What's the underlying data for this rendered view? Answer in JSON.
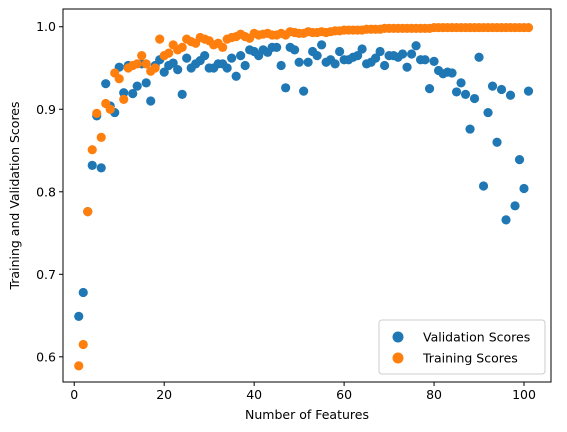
{
  "chart_data": {
    "type": "scatter",
    "xlabel": "Number of Features",
    "ylabel": "Training and Validation Scores",
    "xlim": [
      -2.5,
      106
    ],
    "ylim": [
      0.5695,
      1.0215
    ],
    "xticks": [
      0,
      20,
      40,
      60,
      80,
      100
    ],
    "yticks": [
      0.6,
      0.7,
      0.8,
      0.9,
      1.0
    ],
    "xtick_labels": [
      "0",
      "20",
      "40",
      "60",
      "80",
      "100"
    ],
    "ytick_labels": [
      "0.6",
      "0.7",
      "0.8",
      "0.9",
      "1.0"
    ],
    "grid": false,
    "legend_position": "lower right",
    "series": [
      {
        "name": "Validation Scores",
        "color": "#1f77b4",
        "points": [
          [
            1,
            0.649
          ],
          [
            2,
            0.678
          ],
          [
            3,
            0.776
          ],
          [
            4,
            0.832
          ],
          [
            5,
            0.892
          ],
          [
            6,
            0.829
          ],
          [
            7,
            0.931
          ],
          [
            8,
            0.904
          ],
          [
            9,
            0.896
          ],
          [
            10,
            0.951
          ],
          [
            11,
            0.92
          ],
          [
            12,
            0.953
          ],
          [
            13,
            0.919
          ],
          [
            14,
            0.928
          ],
          [
            15,
            0.955
          ],
          [
            16,
            0.932
          ],
          [
            17,
            0.91
          ],
          [
            18,
            0.953
          ],
          [
            19,
            0.96
          ],
          [
            20,
            0.945
          ],
          [
            21,
            0.953
          ],
          [
            22,
            0.956
          ],
          [
            23,
            0.948
          ],
          [
            24,
            0.918
          ],
          [
            25,
            0.962
          ],
          [
            26,
            0.95
          ],
          [
            27,
            0.955
          ],
          [
            28,
            0.959
          ],
          [
            29,
            0.965
          ],
          [
            30,
            0.95
          ],
          [
            31,
            0.95
          ],
          [
            32,
            0.955
          ],
          [
            33,
            0.955
          ],
          [
            34,
            0.95
          ],
          [
            35,
            0.962
          ],
          [
            36,
            0.94
          ],
          [
            37,
            0.965
          ],
          [
            38,
            0.953
          ],
          [
            39,
            0.972
          ],
          [
            40,
            0.97
          ],
          [
            41,
            0.965
          ],
          [
            42,
            0.972
          ],
          [
            43,
            0.969
          ],
          [
            44,
            0.975
          ],
          [
            45,
            0.975
          ],
          [
            46,
            0.953
          ],
          [
            47,
            0.926
          ],
          [
            48,
            0.975
          ],
          [
            49,
            0.972
          ],
          [
            50,
            0.957
          ],
          [
            51,
            0.922
          ],
          [
            52,
            0.957
          ],
          [
            53,
            0.97
          ],
          [
            54,
            0.965
          ],
          [
            55,
            0.978
          ],
          [
            56,
            0.957
          ],
          [
            57,
            0.96
          ],
          [
            58,
            0.955
          ],
          [
            59,
            0.97
          ],
          [
            60,
            0.96
          ],
          [
            61,
            0.96
          ],
          [
            62,
            0.963
          ],
          [
            63,
            0.965
          ],
          [
            64,
            0.973
          ],
          [
            65,
            0.955
          ],
          [
            66,
            0.957
          ],
          [
            67,
            0.962
          ],
          [
            68,
            0.97
          ],
          [
            69,
            0.953
          ],
          [
            70,
            0.965
          ],
          [
            71,
            0.965
          ],
          [
            72,
            0.963
          ],
          [
            73,
            0.967
          ],
          [
            74,
            0.951
          ],
          [
            75,
            0.967
          ],
          [
            76,
            0.977
          ],
          [
            77,
            0.96
          ],
          [
            78,
            0.96
          ],
          [
            79,
            0.925
          ],
          [
            80,
            0.958
          ],
          [
            81,
            0.947
          ],
          [
            82,
            0.943
          ],
          [
            83,
            0.945
          ],
          [
            84,
            0.944
          ],
          [
            85,
            0.921
          ],
          [
            86,
            0.932
          ],
          [
            87,
            0.918
          ],
          [
            88,
            0.876
          ],
          [
            89,
            0.913
          ],
          [
            90,
            0.963
          ],
          [
            91,
            0.807
          ],
          [
            92,
            0.896
          ],
          [
            93,
            0.928
          ],
          [
            94,
            0.86
          ],
          [
            95,
            0.924
          ],
          [
            96,
            0.766
          ],
          [
            97,
            0.917
          ],
          [
            98,
            0.783
          ],
          [
            99,
            0.839
          ],
          [
            100,
            0.804
          ],
          [
            101,
            0.922
          ]
        ]
      },
      {
        "name": "Training Scores",
        "color": "#ff7f0e",
        "points": [
          [
            1,
            0.589
          ],
          [
            2,
            0.615
          ],
          [
            3,
            0.776
          ],
          [
            4,
            0.851
          ],
          [
            5,
            0.895
          ],
          [
            6,
            0.866
          ],
          [
            7,
            0.907
          ],
          [
            8,
            0.9
          ],
          [
            9,
            0.944
          ],
          [
            10,
            0.937
          ],
          [
            11,
            0.912
          ],
          [
            12,
            0.95
          ],
          [
            13,
            0.953
          ],
          [
            14,
            0.955
          ],
          [
            15,
            0.965
          ],
          [
            16,
            0.955
          ],
          [
            17,
            0.946
          ],
          [
            18,
            0.95
          ],
          [
            19,
            0.985
          ],
          [
            20,
            0.965
          ],
          [
            21,
            0.968
          ],
          [
            22,
            0.978
          ],
          [
            23,
            0.972
          ],
          [
            24,
            0.975
          ],
          [
            25,
            0.985
          ],
          [
            26,
            0.982
          ],
          [
            27,
            0.98
          ],
          [
            28,
            0.987
          ],
          [
            29,
            0.985
          ],
          [
            30,
            0.983
          ],
          [
            31,
            0.978
          ],
          [
            32,
            0.98
          ],
          [
            33,
            0.975
          ],
          [
            34,
            0.985
          ],
          [
            35,
            0.987
          ],
          [
            36,
            0.988
          ],
          [
            37,
            0.991
          ],
          [
            38,
            0.988
          ],
          [
            39,
            0.986
          ],
          [
            40,
            0.992
          ],
          [
            41,
            0.99
          ],
          [
            42,
            0.991
          ],
          [
            43,
            0.992
          ],
          [
            44,
            0.99
          ],
          [
            45,
            0.99
          ],
          [
            46,
            0.992
          ],
          [
            47,
            0.99
          ],
          [
            48,
            0.994
          ],
          [
            49,
            0.993
          ],
          [
            50,
            0.992
          ],
          [
            51,
            0.992
          ],
          [
            52,
            0.994
          ],
          [
            53,
            0.993
          ],
          [
            54,
            0.993
          ],
          [
            55,
            0.994
          ],
          [
            56,
            0.993
          ],
          [
            57,
            0.994
          ],
          [
            58,
            0.995
          ],
          [
            59,
            0.995
          ],
          [
            60,
            0.996
          ],
          [
            61,
            0.996
          ],
          [
            62,
            0.996
          ],
          [
            63,
            0.996
          ],
          [
            64,
            0.996
          ],
          [
            65,
            0.997
          ],
          [
            66,
            0.997
          ],
          [
            67,
            0.997
          ],
          [
            68,
            0.997
          ],
          [
            69,
            0.998
          ],
          [
            70,
            0.998
          ],
          [
            71,
            0.998
          ],
          [
            72,
            0.998
          ],
          [
            73,
            0.998
          ],
          [
            74,
            0.998
          ],
          [
            75,
            0.998
          ],
          [
            76,
            0.998
          ],
          [
            77,
            0.998
          ],
          [
            78,
            0.998
          ],
          [
            79,
            0.998
          ],
          [
            80,
            0.999
          ],
          [
            81,
            0.999
          ],
          [
            82,
            0.999
          ],
          [
            83,
            0.999
          ],
          [
            84,
            0.999
          ],
          [
            85,
            0.999
          ],
          [
            86,
            0.999
          ],
          [
            87,
            0.999
          ],
          [
            88,
            0.999
          ],
          [
            89,
            0.999
          ],
          [
            90,
            0.999
          ],
          [
            91,
            0.999
          ],
          [
            92,
            0.999
          ],
          [
            93,
            0.999
          ],
          [
            94,
            0.999
          ],
          [
            95,
            0.999
          ],
          [
            96,
            0.999
          ],
          [
            97,
            0.999
          ],
          [
            98,
            0.999
          ],
          [
            99,
            0.999
          ],
          [
            100,
            0.999
          ],
          [
            101,
            0.999
          ]
        ]
      }
    ]
  }
}
